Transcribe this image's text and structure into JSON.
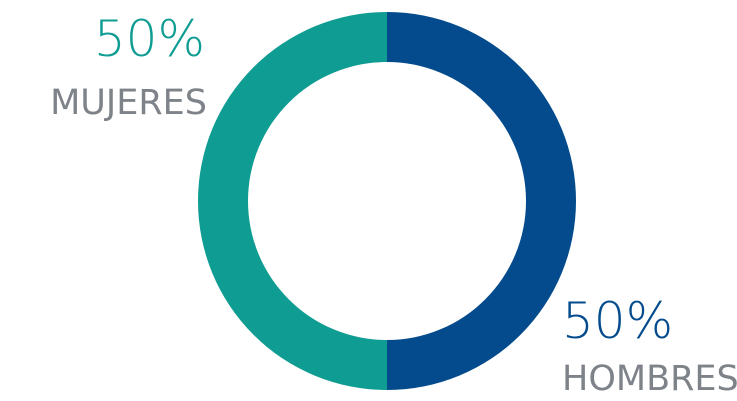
{
  "chart_data": {
    "type": "pie",
    "donut": true,
    "series": [
      {
        "label": "MUJERES",
        "value": 50,
        "value_text": "50%",
        "color": "#0F9C92"
      },
      {
        "label": "HOMBRES",
        "value": 50,
        "value_text": "50%",
        "color": "#034B8C"
      }
    ],
    "label_color": "#7E8389"
  }
}
